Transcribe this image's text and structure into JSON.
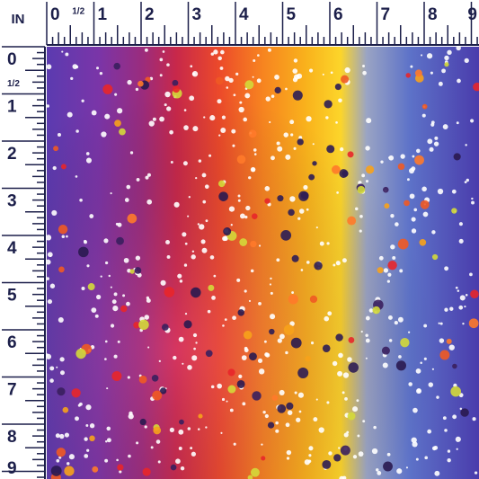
{
  "ruler": {
    "unit": "IN",
    "top": [
      "0",
      "1/2",
      "1",
      "2",
      "3",
      "4",
      "5",
      "6",
      "7",
      "8",
      "9"
    ],
    "left": [
      "0",
      "1/2",
      "1",
      "2",
      "3",
      "4",
      "5",
      "6",
      "7",
      "8",
      "9"
    ]
  }
}
